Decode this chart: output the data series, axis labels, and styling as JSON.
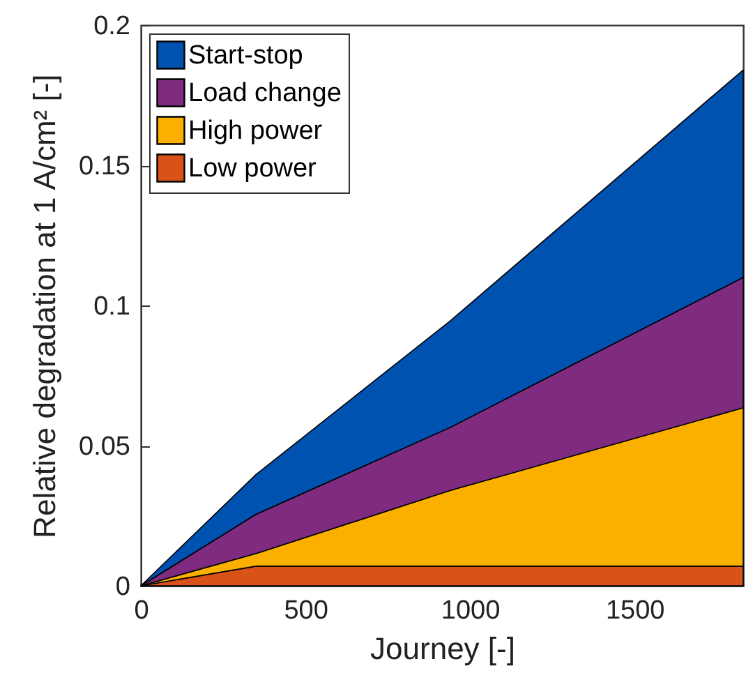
{
  "chart_data": {
    "type": "area",
    "stacked": true,
    "xlabel": "Journey [-]",
    "ylabel": "Relative degradation at 1 A/cm² [-]",
    "x": [
      0,
      350,
      940,
      1830
    ],
    "series": [
      {
        "name": "Low power",
        "color": "#d95319",
        "values": [
          0,
          0.007,
          0.007,
          0.007
        ]
      },
      {
        "name": "High power",
        "color": "#fbb000",
        "values": [
          0,
          0.0045,
          0.027,
          0.0565
        ]
      },
      {
        "name": "Load change",
        "color": "#7e2b80",
        "values": [
          0,
          0.014,
          0.0225,
          0.0465
        ]
      },
      {
        "name": "Start-stop",
        "color": "#0052b0",
        "values": [
          0,
          0.0142,
          0.038,
          0.074
        ]
      }
    ],
    "xlim": [
      0,
      1830
    ],
    "xticks": [
      0,
      500,
      1000,
      1500
    ],
    "ylim": [
      0,
      0.2
    ],
    "yticks": [
      0,
      0.05,
      0.1,
      0.15,
      0.2
    ],
    "grid": false,
    "legend": "top left"
  }
}
